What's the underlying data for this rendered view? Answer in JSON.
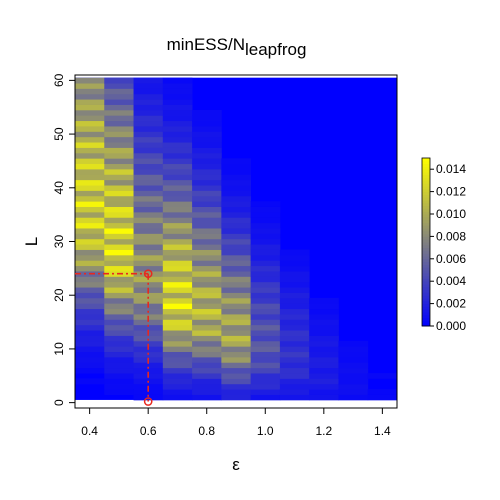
{
  "chart_data": {
    "type": "heatmap",
    "title": "minESS/N",
    "title_subscript": "leapfrog",
    "xlabel": "ε",
    "ylabel": "L",
    "xlim": [
      0.35,
      1.45
    ],
    "ylim": [
      -1,
      61
    ],
    "x_ticks": [
      "0.4",
      "0.6",
      "0.8",
      "1.0",
      "1.2",
      "1.4"
    ],
    "x_tick_values": [
      0.4,
      0.6,
      0.8,
      1.0,
      1.2,
      1.4
    ],
    "y_ticks": [
      "0",
      "10",
      "20",
      "30",
      "40",
      "50",
      "60"
    ],
    "y_tick_values": [
      0,
      10,
      20,
      30,
      40,
      50,
      60
    ],
    "colorbar": {
      "ticks": [
        "0.000",
        "0.002",
        "0.004",
        "0.006",
        "0.008",
        "0.010",
        "0.012",
        "0.014"
      ],
      "tick_values": [
        0,
        0.002,
        0.004,
        0.006,
        0.008,
        0.01,
        0.012,
        0.014
      ],
      "min": 0,
      "max": 0.015,
      "low_color": "#0000ff",
      "mid_color": "#808080",
      "high_color": "#ffff00"
    },
    "columns_eps": [
      0.4,
      0.5,
      0.6,
      0.7,
      0.8,
      0.9,
      1.0,
      1.1,
      1.2,
      1.3,
      1.4
    ],
    "peak_L_per_column": [
      35,
      28,
      22,
      18,
      16,
      12,
      10,
      8,
      5,
      3,
      2
    ],
    "peak_value_per_column": [
      0.0145,
      0.015,
      0.0105,
      0.015,
      0.0125,
      0.0115,
      0.006,
      0.0035,
      0.002,
      0.001,
      0.0005
    ],
    "optimum_point": {
      "eps": 0.6,
      "L": 24
    },
    "optimum_color": "#e8281e",
    "grid": false
  }
}
